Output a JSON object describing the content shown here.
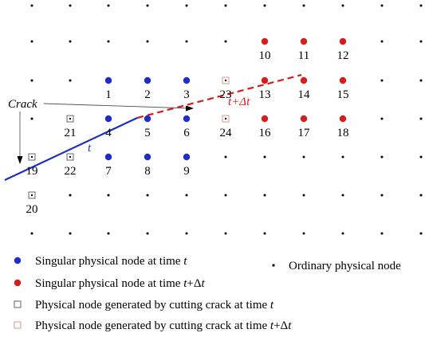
{
  "diagram": {
    "crack_label": "Crack",
    "t_label": "t",
    "t_dt_label": "t+Δt",
    "colors": {
      "blue": "#1f2ec4",
      "red": "#d81c1c",
      "square_black": "#555555",
      "square_red": "#d88a8a",
      "dot": "#000000"
    },
    "blue_nodes": [
      {
        "label": "1"
      },
      {
        "label": "2"
      },
      {
        "label": "3"
      },
      {
        "label": "4"
      },
      {
        "label": "5"
      },
      {
        "label": "6"
      },
      {
        "label": "7"
      },
      {
        "label": "8"
      },
      {
        "label": "9"
      }
    ],
    "red_nodes": [
      {
        "label": "10"
      },
      {
        "label": "11"
      },
      {
        "label": "12"
      },
      {
        "label": "13"
      },
      {
        "label": "14"
      },
      {
        "label": "15"
      },
      {
        "label": "16"
      },
      {
        "label": "17"
      },
      {
        "label": "18"
      }
    ],
    "square_black_nodes": [
      {
        "label": "19"
      },
      {
        "label": "20"
      },
      {
        "label": "21"
      },
      {
        "label": "22"
      }
    ],
    "square_red_nodes": [
      {
        "label": "23"
      },
      {
        "label": "24"
      }
    ]
  },
  "legend": {
    "blue_prefix": "Singular physical node at time ",
    "blue_var": "t",
    "red_prefix": "Singular physical node at time ",
    "red_var": "t",
    "red_suffix": "+Δ",
    "red_var2": "t",
    "ordinary": "Ordinary physical node",
    "sq_black_prefix": "Physical node generated by cutting crack at time ",
    "sq_black_var": "t",
    "sq_red_prefix": "Physical node generated by cutting crack at time ",
    "sq_red_var": "t",
    "sq_red_suffix": "+Δ",
    "sq_red_var2": "t"
  }
}
